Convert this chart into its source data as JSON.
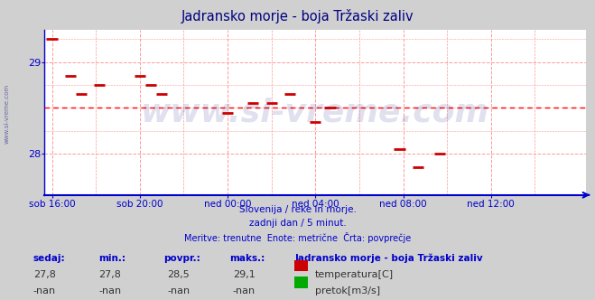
{
  "title": "Jadransko morje - boja Tržaski zaliv",
  "title_color": "#000080",
  "bg_color": "#d0d0d0",
  "plot_bg_color": "#ffffff",
  "grid_color": "#ff9999",
  "axis_color": "#0000cc",
  "avg_line_color": "#ff0000",
  "avg_value": 28.5,
  "y_min": 27.55,
  "y_max": 29.35,
  "y_ticks": [
    28,
    29
  ],
  "x_labels": [
    "sob 16:00",
    "sob 20:00",
    "ned 00:00",
    "ned 04:00",
    "ned 08:00",
    "ned 12:00"
  ],
  "x_positions": [
    0,
    48,
    96,
    144,
    192,
    240
  ],
  "total_points": 288,
  "data_points": [
    [
      0,
      29.25
    ],
    [
      10,
      28.85
    ],
    [
      16,
      28.65
    ],
    [
      26,
      28.75
    ],
    [
      48,
      28.85
    ],
    [
      54,
      28.75
    ],
    [
      60,
      28.65
    ],
    [
      96,
      28.45
    ],
    [
      110,
      28.55
    ],
    [
      120,
      28.55
    ],
    [
      130,
      28.65
    ],
    [
      144,
      28.35
    ],
    [
      152,
      28.5
    ],
    [
      190,
      28.05
    ],
    [
      200,
      27.85
    ],
    [
      212,
      28.0
    ]
  ],
  "watermark": "www.si-vreme.com",
  "watermark_color": "#000080",
  "watermark_alpha": 0.12,
  "sub_text1": "Slovenija / reke in morje.",
  "sub_text2": "zadnji dan / 5 minut.",
  "sub_text3": "Meritve: trenutne  Enote: metrične  Črta: povprečje",
  "sub_color": "#0000cc",
  "sedaj": "27,8",
  "min_val": "27,8",
  "povpr": "28,5",
  "maks": "29,1",
  "legend_title": "Jadransko morje - boja Tržaski zaliv",
  "legend_temp": "temperatura[C]",
  "legend_flow": "pretok[m3/s]",
  "temp_color": "#cc0000",
  "flow_color": "#00aa00"
}
